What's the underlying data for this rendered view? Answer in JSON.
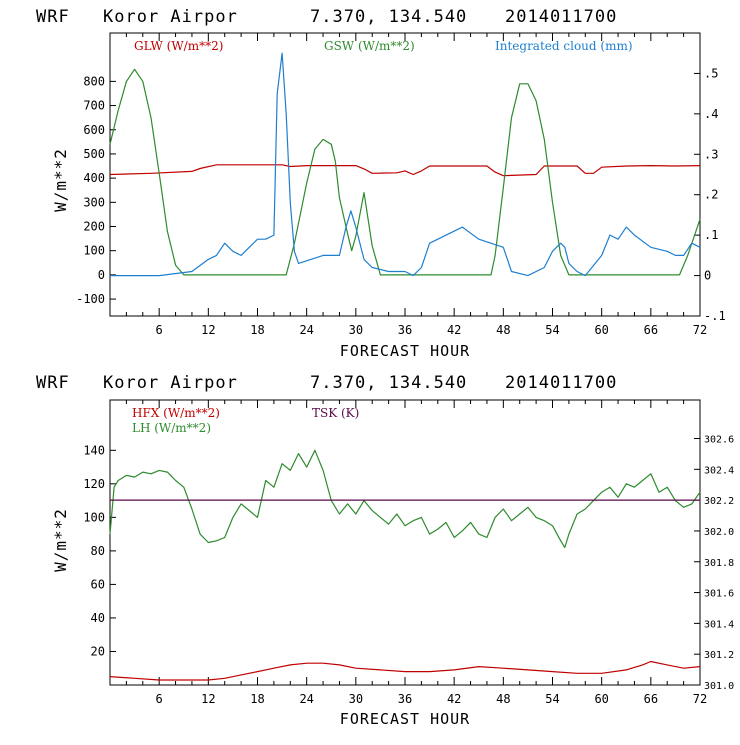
{
  "chart_data": [
    {
      "type": "line",
      "header": {
        "model": "WRF",
        "station": "Koror Airpor",
        "coords": "7.370, 134.540",
        "init": "2014011700"
      },
      "xlabel": "FORECAST HOUR",
      "ylabel": "W/m**2",
      "xlim": [
        0,
        72
      ],
      "ylim": [
        -170,
        1000
      ],
      "y2lim": [
        -0.1,
        0.6
      ],
      "x_ticks": [
        "6",
        "12",
        "18",
        "24",
        "30",
        "36",
        "42",
        "48",
        "54",
        "60",
        "66",
        "72"
      ],
      "y_ticks": [
        "-100",
        "0",
        "100",
        "200",
        "300",
        "400",
        "500",
        "600",
        "700",
        "800"
      ],
      "y2_ticks": [
        "-.1",
        "0",
        ".1",
        ".2",
        ".3",
        ".4",
        ".5"
      ],
      "legend": [
        "GLW (W/m**2)",
        "GSW (W/m**2)",
        "Integrated cloud (mm)"
      ],
      "series": [
        {
          "name": "GLW (W/m**2)",
          "color": "#c00000",
          "axis": "left",
          "x": [
            0,
            5,
            10,
            11,
            13,
            18,
            21,
            22,
            24,
            30,
            31,
            32,
            35,
            36,
            37,
            38,
            39,
            40,
            43,
            46,
            47,
            48,
            52,
            53,
            57,
            58,
            59,
            60,
            63,
            66,
            69,
            72
          ],
          "y": [
            415,
            420,
            428,
            440,
            455,
            455,
            455,
            448,
            452,
            452,
            438,
            420,
            422,
            430,
            415,
            430,
            450,
            450,
            450,
            450,
            425,
            410,
            415,
            450,
            450,
            420,
            420,
            445,
            450,
            452,
            450,
            452
          ]
        },
        {
          "name": "GSW (W/m**2)",
          "color": "#2e8b2e",
          "axis": "left",
          "x": [
            0,
            1,
            2,
            3,
            4,
            5,
            6,
            7,
            8,
            9,
            21.5,
            22.5,
            24,
            25,
            26,
            27,
            27.5,
            28,
            29,
            29.5,
            30,
            31,
            32,
            33,
            46.5,
            47,
            48,
            49,
            50,
            51,
            52,
            53,
            54,
            55,
            56,
            69.5,
            70.5,
            72
          ],
          "y": [
            540,
            680,
            800,
            850,
            800,
            650,
            420,
            180,
            40,
            0,
            0,
            130,
            380,
            520,
            560,
            540,
            470,
            320,
            170,
            100,
            160,
            340,
            120,
            0,
            0,
            80,
            360,
            650,
            790,
            790,
            720,
            560,
            300,
            80,
            0,
            0,
            80,
            230
          ]
        },
        {
          "name": "Integrated cloud (mm)",
          "color": "#1e7fd0",
          "axis": "right",
          "x": [
            0,
            6,
            10,
            12,
            13,
            14,
            14.5,
            15,
            16,
            17,
            18,
            19,
            20,
            20.4,
            21,
            21.5,
            22,
            22.5,
            23,
            26,
            28,
            28.8,
            29.4,
            30,
            31,
            32,
            34,
            36,
            37,
            38,
            39,
            40,
            43,
            45,
            48,
            49,
            51,
            53,
            54,
            55,
            55.5,
            56,
            57,
            58,
            60,
            61,
            62,
            63,
            64,
            66,
            68,
            69,
            70,
            71,
            72
          ],
          "y": [
            0.0,
            0.0,
            0.01,
            0.04,
            0.05,
            0.08,
            0.07,
            0.06,
            0.05,
            0.07,
            0.09,
            0.09,
            0.1,
            0.45,
            0.55,
            0.4,
            0.18,
            0.06,
            0.03,
            0.05,
            0.05,
            0.12,
            0.16,
            0.12,
            0.04,
            0.02,
            0.01,
            0.01,
            0.0,
            0.02,
            0.08,
            0.09,
            0.12,
            0.09,
            0.07,
            0.01,
            0.0,
            0.02,
            0.06,
            0.08,
            0.07,
            0.03,
            0.01,
            0.0,
            0.05,
            0.1,
            0.09,
            0.12,
            0.1,
            0.07,
            0.06,
            0.05,
            0.05,
            0.08,
            0.07
          ]
        }
      ]
    },
    {
      "type": "line",
      "header": {
        "model": "WRF",
        "station": "Koror Airpor",
        "coords": "7.370, 134.540",
        "init": "2014011700"
      },
      "xlabel": "FORECAST HOUR",
      "ylabel": "W/m**2",
      "xlim": [
        0,
        72
      ],
      "ylim": [
        0,
        170
      ],
      "y2lim": [
        301.0,
        302.85
      ],
      "x_ticks": [
        "6",
        "12",
        "18",
        "24",
        "30",
        "36",
        "42",
        "48",
        "54",
        "60",
        "66",
        "72"
      ],
      "y_ticks": [
        "20",
        "40",
        "60",
        "80",
        "100",
        "120",
        "140"
      ],
      "y2_ticks": [
        "301.0",
        "301.2",
        "301.4",
        "301.6",
        "301.8",
        "302.0",
        "302.2",
        "302.4",
        "302.6"
      ],
      "legend": [
        "HFX (W/m**2)",
        "LH  (W/m**2)",
        "TSK (K)"
      ],
      "series": [
        {
          "name": "HFX (W/m**2)",
          "color": "#c00000",
          "axis": "left",
          "x": [
            0,
            3,
            6,
            9,
            12,
            14,
            16,
            18,
            20,
            22,
            24,
            26,
            28,
            30,
            33,
            36,
            39,
            42,
            45,
            48,
            51,
            54,
            57,
            60,
            63,
            65,
            66,
            68,
            70,
            72
          ],
          "y": [
            5,
            4,
            3,
            3,
            3,
            4,
            6,
            8,
            10,
            12,
            13,
            13,
            12,
            10,
            9,
            8,
            8,
            9,
            11,
            10,
            9,
            8,
            7,
            7,
            9,
            12,
            14,
            12,
            10,
            11
          ]
        },
        {
          "name": "LH  (W/m**2)",
          "color": "#2e8b2e",
          "axis": "left",
          "x": [
            0,
            0.5,
            1,
            2,
            3,
            4,
            5,
            6,
            7,
            8,
            9,
            10,
            11,
            12,
            13,
            14,
            15,
            16,
            17,
            18,
            19,
            20,
            21,
            22,
            23,
            24,
            25,
            26,
            27,
            28,
            29,
            30,
            31,
            32,
            33,
            34,
            35,
            36,
            37,
            38,
            39,
            40,
            41,
            42,
            43,
            44,
            45,
            46,
            47,
            48,
            49,
            50,
            51,
            52,
            53,
            54,
            55,
            55.5,
            56,
            57,
            58,
            59,
            60,
            61,
            62,
            63,
            64,
            65,
            66,
            67,
            68,
            69,
            70,
            71,
            72
          ],
          "y": [
            90,
            118,
            122,
            125,
            124,
            127,
            126,
            128,
            127,
            122,
            118,
            105,
            90,
            85,
            86,
            88,
            100,
            108,
            104,
            100,
            122,
            118,
            132,
            128,
            138,
            130,
            140,
            128,
            110,
            102,
            108,
            102,
            110,
            104,
            100,
            96,
            102,
            95,
            98,
            100,
            90,
            93,
            97,
            88,
            92,
            97,
            90,
            88,
            100,
            105,
            98,
            102,
            106,
            100,
            98,
            95,
            86,
            82,
            90,
            102,
            105,
            110,
            115,
            118,
            112,
            120,
            118,
            122,
            126,
            115,
            118,
            110,
            106,
            108,
            115
          ]
        },
        {
          "name": "TSK (K)",
          "color": "#5a0a4a",
          "axis": "right",
          "x": [
            0,
            72
          ],
          "y": [
            302.2,
            302.2
          ]
        }
      ]
    }
  ]
}
